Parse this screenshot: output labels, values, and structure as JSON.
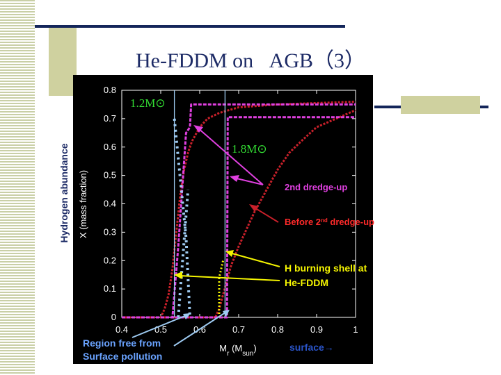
{
  "slide": {
    "title": "He-FDDM on   AGB（3）",
    "side_label": "Hydrogen abundance"
  },
  "colors": {
    "navy": "#14265a",
    "olive": "#cfd19f",
    "red": "#c8202a",
    "magenta": "#e040e0",
    "green": "#33dd33",
    "yellow": "#f5f500",
    "lightblue": "#9ecbf2",
    "blue_text": "#6aa3ff"
  },
  "annotations": {
    "mass_12": "1.2M⊙",
    "mass_18": "1.8M⊙",
    "dredge_2nd": "2nd  dredge-up",
    "before_prefix": "Before 2",
    "before_sup": "nd",
    "before_suffix": " dredge-up",
    "h_burning_line1": "H burning shell at",
    "h_burning_line2": "He-FDDM",
    "region_line1": "Region free from",
    "region_line2": "Surface pollution",
    "surface": "surface→"
  },
  "chart_data": {
    "type": "line",
    "title": "",
    "xlabel": "Mr (Msun)",
    "ylabel": "X (mass fraction)",
    "xlim": [
      0.4,
      1.0
    ],
    "ylim": [
      0,
      0.8
    ],
    "x_ticks": [
      "0.4",
      "0.5",
      "0.6",
      "0.7",
      "0.8",
      "0.9",
      "1"
    ],
    "y_ticks": [
      "0",
      "0.1",
      "0.2",
      "0.3",
      "0.4",
      "0.5",
      "0.6",
      "0.7",
      "0.8"
    ],
    "grid": false,
    "series": [
      {
        "name": "1.2M⊙ before 2nd dredge-up",
        "color": "#c8202a",
        "x": [
          0.4,
          0.5,
          0.51,
          0.52,
          0.53,
          0.54,
          0.55,
          0.56,
          0.57,
          0.58,
          0.6,
          0.62,
          0.65,
          0.7,
          0.8,
          1.0
        ],
        "y": [
          0.0,
          0.0,
          0.03,
          0.08,
          0.17,
          0.3,
          0.43,
          0.52,
          0.58,
          0.62,
          0.67,
          0.7,
          0.72,
          0.74,
          0.75,
          0.76
        ]
      },
      {
        "name": "1.8M⊙ before 2nd dredge-up",
        "color": "#c8202a",
        "x": [
          0.4,
          0.64,
          0.65,
          0.66,
          0.67,
          0.68,
          0.7,
          0.72,
          0.74,
          0.76,
          0.78,
          0.8,
          0.83,
          0.86,
          0.9,
          0.95,
          1.0
        ],
        "y": [
          0.0,
          0.0,
          0.03,
          0.08,
          0.13,
          0.18,
          0.25,
          0.31,
          0.37,
          0.42,
          0.47,
          0.52,
          0.58,
          0.62,
          0.67,
          0.7,
          0.73
        ]
      },
      {
        "name": "1.2M⊙ 2nd dredge-up",
        "color": "#e040e0",
        "x": [
          0.4,
          0.5,
          0.53,
          0.545,
          0.565,
          0.575,
          0.578,
          0.58,
          0.7,
          1.0
        ],
        "y": [
          0.0,
          0.0,
          0.0,
          0.25,
          0.65,
          0.67,
          0.75,
          0.75,
          0.75,
          0.75
        ]
      },
      {
        "name": "1.8M⊙ 2nd dredge-up",
        "color": "#e040e0",
        "x": [
          0.4,
          0.67,
          0.67,
          0.672,
          1.0
        ],
        "y": [
          0.0,
          0.0,
          0.0,
          0.705,
          0.705
        ]
      },
      {
        "name": "1.2M⊙ He-FDDM",
        "color": "#9ecbf2",
        "x": [
          0.535,
          0.535
        ],
        "y": [
          0.0,
          0.8
        ]
      },
      {
        "name": "1.8M⊙ He-FDDM",
        "color": "#9ecbf2",
        "x": [
          0.665,
          0.665
        ],
        "y": [
          0.0,
          0.8
        ]
      },
      {
        "name": "1.2M⊙ region free from surface pollution",
        "color": "#9ecbf2",
        "x": [
          0.535,
          0.545,
          0.555,
          0.565,
          0.57,
          0.575
        ],
        "y": [
          0.7,
          0.56,
          0.42,
          0.28,
          0.14,
          0.0
        ]
      },
      {
        "name": "1.2M⊙ region free from surface pollution (2)",
        "color": "#9ecbf2",
        "x": [
          0.545,
          0.55,
          0.555,
          0.56,
          0.565,
          0.57
        ],
        "y": [
          0.0,
          0.09,
          0.18,
          0.27,
          0.36,
          0.45
        ]
      },
      {
        "name": "1.8M⊙ H burning shell",
        "color": "#f5f500",
        "x": [
          0.65,
          0.65,
          0.66
        ],
        "y": [
          0.0,
          0.14,
          0.2
        ]
      }
    ]
  }
}
